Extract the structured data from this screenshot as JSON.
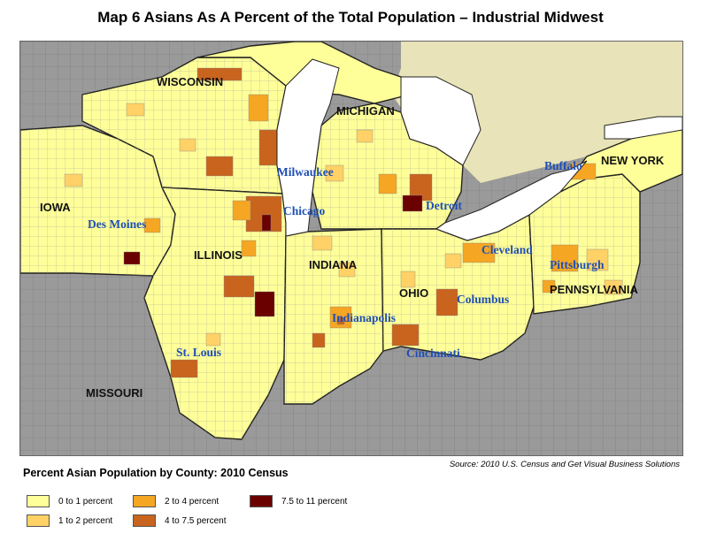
{
  "title": "Map 6   Asians As A Percent of the Total Population – Industrial Midwest",
  "legend": {
    "title": "Percent Asian Population by County: 2010 Census",
    "items": [
      {
        "label": "0 to 1 percent",
        "color": "#ffff99"
      },
      {
        "label": "1 to 2 percent",
        "color": "#ffd166"
      },
      {
        "label": "2 to 4 percent",
        "color": "#f5a623"
      },
      {
        "label": "4 to 7.5 percent",
        "color": "#c8641e"
      },
      {
        "label": "7.5 to 11 percent",
        "color": "#6b0000"
      }
    ]
  },
  "source": "Source: 2010 U.S. Census and Get Visual Business Solutions",
  "states": {
    "wisconsin": "WISCONSIN",
    "michigan": "MICHIGAN",
    "iowa": "IOWA",
    "illinois": "ILLINOIS",
    "indiana": "INDIANA",
    "ohio": "OHIO",
    "pennsylvania": "PENNSYLVANIA",
    "new_york": "NEW YORK",
    "missouri": "MISSOURI"
  },
  "cities": {
    "milwaukee": "Milwaukee",
    "chicago": "Chicago",
    "detroit": "Detroit",
    "buffalo": "Buffalo",
    "des_moines": "Des Moines",
    "cleveland": "Cleveland",
    "pittsburgh": "Pittsburgh",
    "columbus": "Columbus",
    "indianapolis": "Indianapolis",
    "cincinnati": "Cincinnati",
    "st_louis": "St. Louis"
  },
  "colors": {
    "outside": "#9a9a9a",
    "water": "#ffffff",
    "canada": "#e8e3b8",
    "border": "#222222",
    "city_text": "#1f4fb4"
  }
}
